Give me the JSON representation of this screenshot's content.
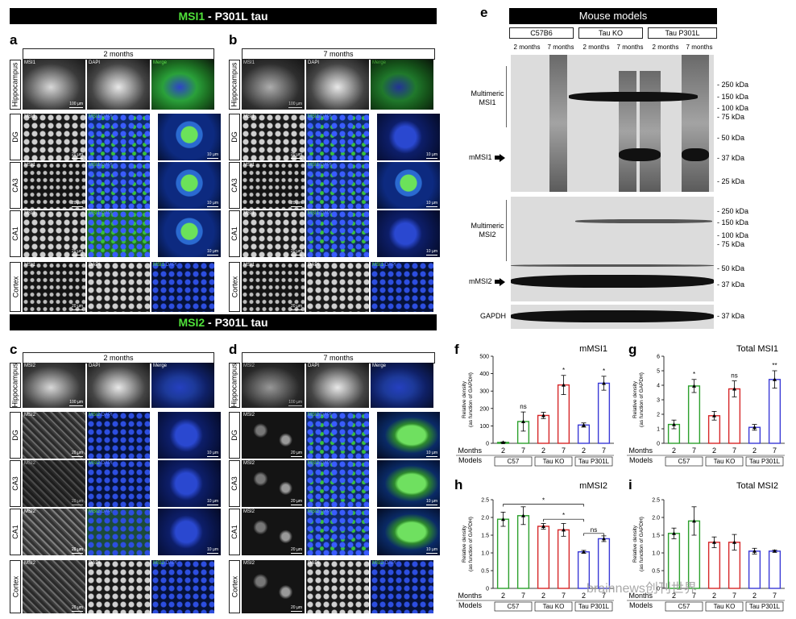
{
  "banners": {
    "msi1": {
      "protein": "MSI1",
      "rest": " - P301L tau"
    },
    "msi2": {
      "protein": "MSI2",
      "rest": " - P301L tau"
    },
    "models": "Mouse models"
  },
  "panel_letters": [
    "a",
    "b",
    "c",
    "d",
    "e",
    "f",
    "g",
    "h",
    "i"
  ],
  "timepoints": {
    "two": "2 months",
    "seven": "7 months"
  },
  "regions": {
    "hippo": "Hippocampus",
    "dg": "DG",
    "ca3": "CA3",
    "ca1": "CA1",
    "cortex": "Cortex"
  },
  "micro": {
    "msi1": "MSI1",
    "msi2": "MSI2",
    "dapi": "DAPI",
    "merge": "Merge",
    "msi1dapi_a": "MSI1",
    "msi1dapi_b": "/DAPI",
    "msi2dapi_a": "MSI2",
    "msi2dapi_b": "/DAPI",
    "s100": "100 µm",
    "s20": "20 µm",
    "s10": "10 µm"
  },
  "blot": {
    "models": [
      "C57B6",
      "Tau KO",
      "Tau P301L"
    ],
    "lane_months": [
      "2 months",
      "7 months",
      "2 months",
      "7 months",
      "2 months",
      "7 months"
    ],
    "multimeric_msi1": "Multimeric\nMSI1",
    "mmsi1": "mMSI1",
    "multimeric_msi2": "Multimeric\nMSI2",
    "mmsi2": "mMSI2",
    "gapdh": "GAPDH",
    "kda_msi1": [
      "250 kDa",
      "150 kDa",
      "100 kDa",
      "75 kDa",
      "50 kDa",
      "37 kDa",
      "25 kDa"
    ],
    "kda_msi2": [
      "250 kDa",
      "150 kDa",
      "100 kDa",
      "75 kDa",
      "50 kDa",
      "37 kDa"
    ],
    "kda_gapdh": [
      "37 kDa"
    ]
  },
  "axis_text": {
    "ylabel_line1": "Relative density",
    "ylabel_line2": "(as function of GAPDH)",
    "months_label": "Months",
    "models_label": "Models",
    "month_ticks": [
      "2",
      "7",
      "2",
      "7",
      "2",
      "7"
    ],
    "model_groups_short": [
      "C57",
      "Tau KO",
      "Tau P301L"
    ]
  },
  "colors": {
    "c57": "#2ca02c",
    "taukO": "#d62728",
    "p301l": "#3a3ad6",
    "green_text": "#4fe03a"
  },
  "chart_data": [
    {
      "panel": "f",
      "type": "bar",
      "title": "mMSI1",
      "ylabel": "Relative density (as function of GAPDH)",
      "categories": [
        "C57 2",
        "C57 7",
        "Tau KO 2",
        "Tau KO 7",
        "Tau P301L 2",
        "Tau P301L 7"
      ],
      "values": [
        5,
        125,
        160,
        335,
        105,
        345
      ],
      "errors": [
        3,
        55,
        18,
        55,
        12,
        40
      ],
      "yticks": [
        0,
        100,
        200,
        300,
        400,
        500
      ],
      "ylim": [
        0,
        500
      ],
      "annotations": [
        "",
        "ns",
        "",
        "*",
        "",
        "*"
      ]
    },
    {
      "panel": "g",
      "type": "bar",
      "title": "Total MSI1",
      "ylabel": "Relative density (as function of GAPDH)",
      "categories": [
        "C57 2",
        "C57 7",
        "Tau KO 2",
        "Tau KO 7",
        "Tau P301L 2",
        "Tau P301L 7"
      ],
      "values": [
        1.3,
        3.95,
        1.9,
        3.75,
        1.1,
        4.4
      ],
      "errors": [
        0.3,
        0.45,
        0.3,
        0.55,
        0.2,
        0.6
      ],
      "yticks": [
        0,
        1,
        2,
        3,
        4,
        5,
        6
      ],
      "ylim": [
        0,
        6
      ],
      "annotations": [
        "",
        "*",
        "",
        "ns",
        "",
        "**"
      ]
    },
    {
      "panel": "h",
      "type": "bar",
      "title": "mMSI2",
      "ylabel": "Relative density (as function of GAPDH)",
      "categories": [
        "C57 2",
        "C57 7",
        "Tau KO 2",
        "Tau KO 7",
        "Tau P301L 2",
        "Tau P301L 7"
      ],
      "values": [
        1.95,
        2.05,
        1.75,
        1.65,
        1.03,
        1.4
      ],
      "errors": [
        0.2,
        0.25,
        0.08,
        0.18,
        0.04,
        0.08
      ],
      "yticks": [
        0,
        0.5,
        1.0,
        1.5,
        2.0,
        2.5
      ],
      "ylim": [
        0,
        2.5
      ],
      "brackets": [
        {
          "from": 0,
          "to": 4,
          "label": "*"
        },
        {
          "from": 2,
          "to": 4,
          "label": "*"
        },
        {
          "from": 4,
          "to": 5,
          "label": "ns"
        }
      ]
    },
    {
      "panel": "i",
      "type": "bar",
      "title": "Total MSI2",
      "ylabel": "Relative density (as function of GAPDH)",
      "categories": [
        "C57 2",
        "C57 7",
        "Tau KO 2",
        "Tau KO 7",
        "Tau P301L 2",
        "Tau P301L 7"
      ],
      "values": [
        1.55,
        1.9,
        1.3,
        1.3,
        1.05,
        1.05
      ],
      "errors": [
        0.15,
        0.4,
        0.15,
        0.22,
        0.08,
        0.03
      ],
      "yticks": [
        0,
        0.5,
        1.0,
        1.5,
        2.0,
        2.5
      ],
      "ylim": [
        0,
        2.5
      ]
    }
  ],
  "watermark": "brainnews创刊世界"
}
